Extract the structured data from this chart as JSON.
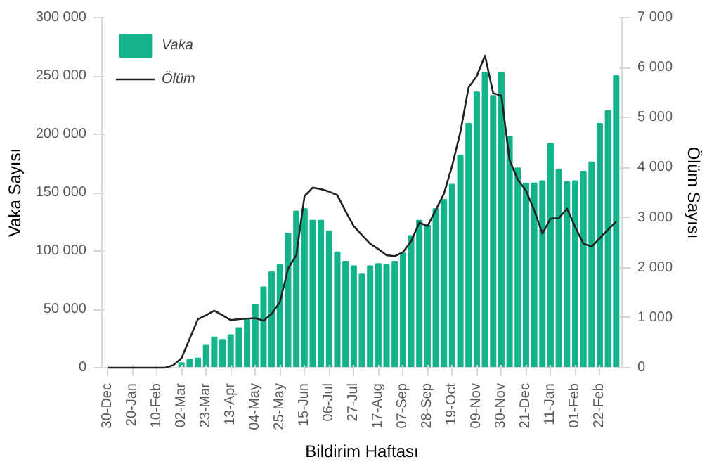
{
  "chart_data": {
    "type": "bar",
    "xlabel": "Bildirim Haftası",
    "ylabel": "Vaka Sayısı",
    "y2label": "Ölüm Sayısı",
    "categories": [
      "30-Dec",
      null,
      null,
      "20-Jan",
      null,
      null,
      "10-Feb",
      null,
      null,
      "02-Mar",
      null,
      null,
      "23-Mar",
      null,
      null,
      "13-Apr",
      null,
      null,
      "04-May",
      null,
      null,
      "25-May",
      null,
      null,
      "15-Jun",
      null,
      null,
      "06-Jul",
      null,
      null,
      "27-Jul",
      null,
      null,
      "17-Aug",
      null,
      null,
      "07-Sep",
      null,
      null,
      "28-Sep",
      null,
      null,
      "19-Oct",
      null,
      null,
      "09-Nov",
      null,
      null,
      "30-Nov",
      null,
      null,
      "21-Dec",
      null,
      null,
      "11-Jan",
      null,
      null,
      "01-Feb",
      null,
      null,
      "22-Feb",
      null,
      null
    ],
    "series": [
      {
        "name": "Vaka",
        "color": "#13b38b",
        "values": [
          0,
          0,
          0,
          0,
          0,
          0,
          0,
          0,
          0,
          4000,
          7000,
          8000,
          19000,
          26000,
          24000,
          28000,
          34000,
          41000,
          54000,
          69000,
          82000,
          88000,
          115000,
          134000,
          136000,
          126000,
          126000,
          117000,
          99000,
          91000,
          87000,
          80000,
          87000,
          89000,
          88000,
          91000,
          98000,
          113000,
          126000,
          122000,
          136000,
          144000,
          157000,
          182000,
          209000,
          236000,
          253000,
          233000,
          253000,
          198000,
          171000,
          158000,
          158000,
          160000,
          192000,
          170000,
          159000,
          160000,
          168000,
          176000,
          209000,
          220000,
          250000
        ]
      },
      {
        "name": "Ölüm",
        "type": "line",
        "axis": "y2",
        "color": "#222222",
        "values": [
          0,
          0,
          0,
          0,
          0,
          0,
          0,
          0,
          50,
          190,
          580,
          970,
          1050,
          1140,
          1050,
          950,
          970,
          980,
          990,
          940,
          1080,
          1310,
          1980,
          2250,
          3430,
          3600,
          3570,
          3520,
          3450,
          3130,
          2830,
          2650,
          2480,
          2370,
          2250,
          2230,
          2310,
          2530,
          2900,
          2830,
          3150,
          3480,
          4040,
          4710,
          5600,
          5830,
          6240,
          5490,
          5440,
          4150,
          3760,
          3540,
          3150,
          2680,
          2980,
          2990,
          3180,
          2810,
          2480,
          2420,
          2590,
          2760,
          2920
        ]
      }
    ],
    "ylim": [
      0,
      300000
    ],
    "yticks": [
      {
        "value": 0,
        "label": "0"
      },
      {
        "value": 50000,
        "label": "50 000"
      },
      {
        "value": 100000,
        "label": "100 000"
      },
      {
        "value": 150000,
        "label": "150 000"
      },
      {
        "value": 200000,
        "label": "200 000"
      },
      {
        "value": 250000,
        "label": "250 000"
      },
      {
        "value": 300000,
        "label": "300 000"
      }
    ],
    "y2lim": [
      0,
      7000
    ],
    "y2ticks": [
      {
        "value": 0,
        "label": "0"
      },
      {
        "value": 1000,
        "label": "1 000"
      },
      {
        "value": 2000,
        "label": "2 000"
      },
      {
        "value": 3000,
        "label": "3 000"
      },
      {
        "value": 4000,
        "label": "4 000"
      },
      {
        "value": 5000,
        "label": "5 000"
      },
      {
        "value": 6000,
        "label": "6 000"
      },
      {
        "value": 7000,
        "label": "7 000"
      }
    ],
    "grid": false,
    "legend": "top left",
    "marker": "none",
    "line_style": "solid"
  }
}
